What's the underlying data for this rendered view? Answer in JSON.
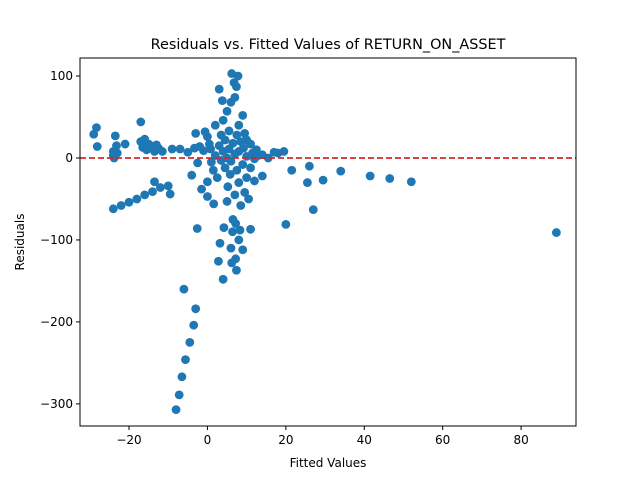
{
  "chart_data": {
    "type": "scatter",
    "title": "Residuals vs. Fitted Values of RETURN_ON_ASSET",
    "xlabel": "Fitted Values",
    "ylabel": "Residuals",
    "xlim": [
      -32.5,
      94
    ],
    "ylim": [
      -327,
      122
    ],
    "xticks": [
      -20,
      0,
      20,
      40,
      60,
      80
    ],
    "xtick_labels": [
      "−20",
      "0",
      "20",
      "40",
      "60",
      "80"
    ],
    "yticks": [
      -300,
      -200,
      -100,
      0,
      100
    ],
    "ytick_labels": [
      "−300",
      "−200",
      "−100",
      "0",
      "100"
    ],
    "grid": false,
    "legend": "none",
    "reference_line": {
      "y": 0,
      "style": "dashed",
      "color": "#d62728"
    },
    "marker_color": "#1f77b4",
    "points": [
      [
        -29.0,
        29
      ],
      [
        -28.3,
        37
      ],
      [
        -28.1,
        14
      ],
      [
        -24.0,
        -62
      ],
      [
        -24.0,
        3
      ],
      [
        -24.0,
        8
      ],
      [
        -23.8,
        0
      ],
      [
        -23.5,
        27
      ],
      [
        -23.2,
        15
      ],
      [
        -23.0,
        6
      ],
      [
        -22.0,
        -58
      ],
      [
        -21.0,
        17
      ],
      [
        -20.0,
        -54
      ],
      [
        -18.0,
        -50
      ],
      [
        -17.0,
        44
      ],
      [
        -17.0,
        20
      ],
      [
        -16.5,
        13
      ],
      [
        -16.0,
        23
      ],
      [
        -16.0,
        -45
      ],
      [
        -15.5,
        10
      ],
      [
        -15.0,
        17
      ],
      [
        -14.5,
        15
      ],
      [
        -14.0,
        12
      ],
      [
        -14.0,
        -41
      ],
      [
        -13.5,
        8
      ],
      [
        -13.5,
        -29
      ],
      [
        -13.0,
        16
      ],
      [
        -12.5,
        12
      ],
      [
        -12.0,
        -36
      ],
      [
        -11.5,
        8
      ],
      [
        -10.0,
        -34
      ],
      [
        -9.5,
        -44
      ],
      [
        -9.0,
        11
      ],
      [
        -8.0,
        -307
      ],
      [
        -7.2,
        -289
      ],
      [
        -7.0,
        11
      ],
      [
        -6.5,
        -267
      ],
      [
        -6.0,
        -160
      ],
      [
        -5.6,
        -246
      ],
      [
        -5.0,
        7
      ],
      [
        -4.5,
        -225
      ],
      [
        -4.0,
        -21
      ],
      [
        -3.5,
        -204
      ],
      [
        -3.3,
        12
      ],
      [
        -3.0,
        -184
      ],
      [
        -3.0,
        30
      ],
      [
        -2.6,
        -86
      ],
      [
        -2.5,
        -6
      ],
      [
        -2.0,
        14
      ],
      [
        -1.5,
        -38
      ],
      [
        -1.0,
        9
      ],
      [
        -0.6,
        32
      ],
      [
        0.0,
        -29
      ],
      [
        0.0,
        26
      ],
      [
        0.0,
        -47
      ],
      [
        0.5,
        17
      ],
      [
        0.8,
        11
      ],
      [
        1.0,
        -5
      ],
      [
        1.5,
        -15
      ],
      [
        1.6,
        -56
      ],
      [
        2.0,
        3
      ],
      [
        2.0,
        40
      ],
      [
        2.5,
        -24
      ],
      [
        2.8,
        -126
      ],
      [
        3.0,
        84
      ],
      [
        3.0,
        15
      ],
      [
        3.2,
        -104
      ],
      [
        3.5,
        28
      ],
      [
        3.5,
        -3
      ],
      [
        3.8,
        70
      ],
      [
        4.0,
        -148
      ],
      [
        4.0,
        46
      ],
      [
        4.0,
        8
      ],
      [
        4.2,
        -85
      ],
      [
        4.5,
        -12
      ],
      [
        4.5,
        22
      ],
      [
        5.0,
        -53
      ],
      [
        5.0,
        57
      ],
      [
        5.0,
        0
      ],
      [
        5.2,
        -35
      ],
      [
        5.5,
        33
      ],
      [
        5.5,
        11
      ],
      [
        5.8,
        -20
      ],
      [
        6.0,
        -110
      ],
      [
        6.0,
        68
      ],
      [
        6.0,
        -4
      ],
      [
        6.2,
        103
      ],
      [
        6.2,
        -128
      ],
      [
        6.4,
        -90
      ],
      [
        6.5,
        18
      ],
      [
        6.5,
        -75
      ],
      [
        6.8,
        92
      ],
      [
        7.0,
        -45
      ],
      [
        7.0,
        74
      ],
      [
        7.0,
        5
      ],
      [
        7.2,
        -123
      ],
      [
        7.2,
        -80
      ],
      [
        7.4,
        -137
      ],
      [
        7.4,
        87
      ],
      [
        7.5,
        28
      ],
      [
        7.5,
        -15
      ],
      [
        7.8,
        100
      ],
      [
        8.0,
        -100
      ],
      [
        8.0,
        40
      ],
      [
        8.0,
        -30
      ],
      [
        8.0,
        8
      ],
      [
        8.3,
        -88
      ],
      [
        8.5,
        20
      ],
      [
        8.5,
        -58
      ],
      [
        9.0,
        -112
      ],
      [
        9.0,
        52
      ],
      [
        9.0,
        -8
      ],
      [
        9.2,
        12
      ],
      [
        9.5,
        30
      ],
      [
        9.5,
        -42
      ],
      [
        10.0,
        22
      ],
      [
        10.0,
        -24
      ],
      [
        10.0,
        2
      ],
      [
        10.5,
        -50
      ],
      [
        11.0,
        -87
      ],
      [
        11.0,
        17
      ],
      [
        11.0,
        -12
      ],
      [
        11.5,
        6
      ],
      [
        12.0,
        -1
      ],
      [
        12.0,
        -28
      ],
      [
        12.5,
        10
      ],
      [
        13.0,
        3
      ],
      [
        14.0,
        -22
      ],
      [
        14.0,
        4
      ],
      [
        15.5,
        0
      ],
      [
        17.0,
        7
      ],
      [
        18.0,
        6
      ],
      [
        19.5,
        8
      ],
      [
        20.0,
        -81
      ],
      [
        21.5,
        -15
      ],
      [
        25.5,
        -30
      ],
      [
        26.0,
        -10
      ],
      [
        27.0,
        -63
      ],
      [
        29.5,
        -27
      ],
      [
        34.0,
        -16
      ],
      [
        41.5,
        -22
      ],
      [
        46.5,
        -25
      ],
      [
        52.0,
        -29
      ],
      [
        89.0,
        -91
      ]
    ]
  }
}
